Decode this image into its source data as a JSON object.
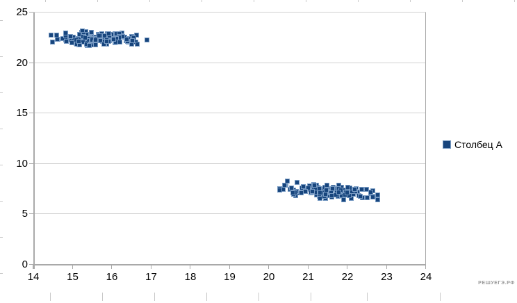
{
  "chart_data": {
    "type": "scatter",
    "title": "",
    "xlabel": "",
    "ylabel": "",
    "xlim": [
      14,
      24
    ],
    "ylim": [
      0,
      25
    ],
    "x_ticks": [
      14,
      15,
      16,
      17,
      18,
      19,
      20,
      21,
      22,
      23,
      24
    ],
    "y_ticks": [
      0,
      5,
      10,
      15,
      20,
      25
    ],
    "grid": "horizontal-only",
    "legend_position": "right-middle",
    "series": [
      {
        "name": "Столбец A",
        "marker": "square",
        "color": "#17457d",
        "marker_border_color": "#7a9cc4",
        "clusters": [
          {
            "label": "cluster-high-left",
            "count": 130,
            "center": [
              15.65,
              22.35
            ],
            "x_range": [
              14.35,
              17.0
            ],
            "y_range": [
              20.85,
              23.65
            ],
            "spread_x": 1.35,
            "spread_y": 0.85,
            "tilt": -0.18,
            "seed": 20177
          },
          {
            "label": "cluster-low-right",
            "count": 130,
            "center": [
              21.45,
              7.3
            ],
            "x_range": [
              20.05,
              22.8
            ],
            "y_range": [
              5.9,
              8.65
            ],
            "spread_x": 1.4,
            "spread_y": 0.85,
            "tilt": -0.3,
            "seed": 90011
          }
        ]
      }
    ]
  },
  "legend": {
    "label": "Столбец A"
  },
  "watermark": "РЕШУЕГЭ.РФ",
  "colors": {
    "marker_fill": "#17457d",
    "marker_border": "#7a9cc4",
    "axis_line": "#a9a9a9",
    "gridline": "#d0d0d0",
    "edge_tick": "#c9c9c9",
    "label_text": "#000000",
    "watermark_text": "#9a9a9a"
  }
}
